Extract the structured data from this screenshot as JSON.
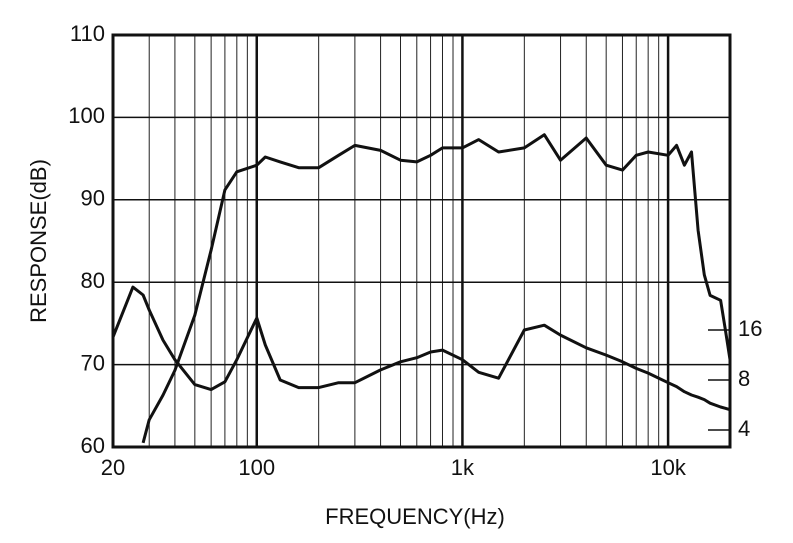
{
  "chart_data": {
    "type": "line",
    "x_label": "FREQUENCY(Hz)",
    "y_label": "RESPONSE(dB)",
    "xlog": true,
    "xlim": [
      20,
      20000
    ],
    "xticks": [
      20,
      100,
      {
        "value": 1000,
        "label": "1k"
      },
      {
        "value": 10000,
        "label": "10k"
      }
    ],
    "xminor": [
      30,
      40,
      50,
      60,
      70,
      80,
      90,
      200,
      300,
      400,
      500,
      600,
      700,
      800,
      900,
      2000,
      3000,
      4000,
      5000,
      6000,
      7000,
      8000,
      9000
    ],
    "ylim": [
      60,
      110
    ],
    "yticks": [
      60,
      70,
      80,
      90,
      100,
      110
    ],
    "y2log": true,
    "y2lim": [
      3.16,
      955
    ],
    "y2ticks": [
      4,
      8,
      16
    ],
    "grid": true,
    "x": [
      20,
      25,
      28,
      30,
      35,
      40,
      50,
      60,
      70,
      80,
      100,
      110,
      130,
      160,
      200,
      250,
      300,
      400,
      500,
      600,
      700,
      800,
      1000,
      1200,
      1500,
      2000,
      2500,
      3000,
      4000,
      5000,
      6000,
      7000,
      8000,
      10000,
      11000,
      12000,
      13000,
      14000,
      15000,
      16000,
      18000,
      19000,
      20000
    ],
    "series": [
      {
        "color": "#111111",
        "values": [
          null,
          null,
          60.5,
          63.3,
          66.3,
          69.3,
          76,
          83.9,
          91.2,
          93.4,
          94.2,
          95.2,
          94.6,
          93.9,
          93.9,
          95.4,
          96.6,
          96,
          94.8,
          94.6,
          95.4,
          96.3,
          96.3,
          97.3,
          95.8,
          96.3,
          97.9,
          94.8,
          97.5,
          94.2,
          93.6,
          95.4,
          95.8,
          95.4,
          96.6,
          94.2,
          95.8,
          86.3,
          80.9,
          78.4,
          77.8,
          74.2,
          70.6
        ]
      },
      {
        "color": "#111111",
        "axis": "y2",
        "values": [
          14.5,
          29,
          26,
          21.1,
          13.9,
          10.6,
          7.5,
          7,
          7.8,
          10.6,
          18.9,
          13,
          8,
          7.2,
          7.2,
          7.7,
          7.7,
          9.2,
          10.3,
          10.9,
          11.8,
          12.1,
          10.6,
          8.9,
          8.2,
          16,
          17.1,
          14.9,
          12.5,
          11.3,
          10.3,
          9.4,
          8.8,
          7.7,
          7.3,
          6.8,
          6.5,
          6.3,
          6.1,
          5.8,
          5.5,
          5.4,
          5.3
        ]
      }
    ]
  }
}
